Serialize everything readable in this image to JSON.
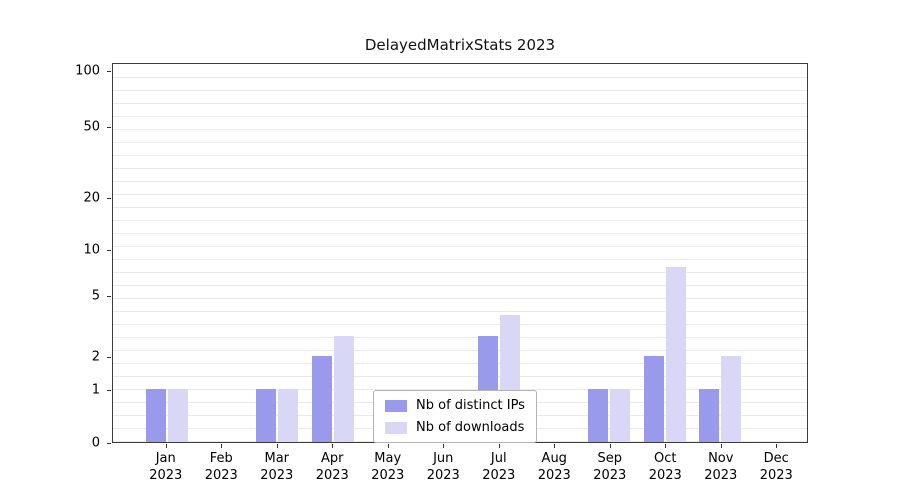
{
  "title": "DelayedMatrixStats 2023",
  "colors": {
    "distinct_ips": "#9a9aec",
    "downloads": "#d8d8f6",
    "grid": "#e9e9e9",
    "axis": "#3c3c3c",
    "background": "#ffffff"
  },
  "legend": {
    "items": [
      {
        "label": "Nb of distinct IPs",
        "color": "#9a9aec"
      },
      {
        "label": "Nb of downloads",
        "color": "#d8d8f6"
      }
    ]
  },
  "chart_data": {
    "type": "bar",
    "title": "DelayedMatrixStats 2023",
    "xlabel": "",
    "ylabel": "",
    "year": "2023",
    "categories": [
      "Jan",
      "Feb",
      "Mar",
      "Apr",
      "May",
      "Jun",
      "Jul",
      "Aug",
      "Sep",
      "Oct",
      "Nov",
      "Dec"
    ],
    "series": [
      {
        "name": "Nb of distinct IPs",
        "color": "#9a9aec",
        "values": [
          1,
          0,
          1,
          2,
          0,
          0,
          3,
          0,
          1,
          2,
          1,
          0
        ]
      },
      {
        "name": "Nb of downloads",
        "color": "#d8d8f6",
        "values": [
          1,
          0,
          1,
          3,
          0,
          0,
          4,
          0,
          1,
          8,
          2,
          0
        ]
      }
    ],
    "y_ticks": [
      0,
      1,
      2,
      5,
      10,
      20,
      50,
      100
    ],
    "ylim": [
      0,
      100
    ],
    "y_scale": "log-like",
    "grid": true,
    "legend_position": "lower center"
  }
}
